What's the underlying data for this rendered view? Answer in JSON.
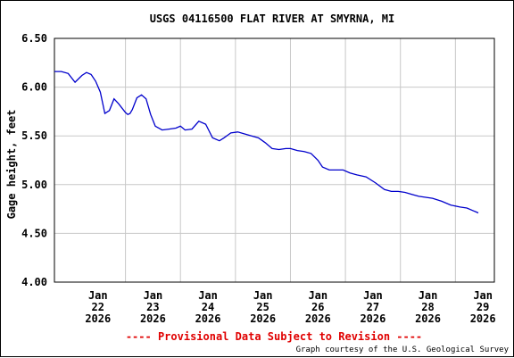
{
  "chart_data": {
    "type": "line",
    "title": "USGS 04116500 FLAT RIVER AT SMYRNA, MI",
    "ylabel": "Gage height, feet",
    "xlabel": "",
    "ylim": [
      4.0,
      6.5
    ],
    "yticks": [
      "4.00",
      "4.50",
      "5.00",
      "5.50",
      "6.00",
      "6.50"
    ],
    "yticks_values": [
      4.0,
      4.5,
      5.0,
      5.5,
      6.0,
      6.5
    ],
    "xlim": [
      "2026-01-21T17:00",
      "2026-01-29T17:00"
    ],
    "xticks": [
      {
        "at": "2026-01-22T12:00",
        "lines": [
          "Jan",
          "22",
          "2026"
        ]
      },
      {
        "at": "2026-01-23T12:00",
        "lines": [
          "Jan",
          "23",
          "2026"
        ]
      },
      {
        "at": "2026-01-24T12:00",
        "lines": [
          "Jan",
          "24",
          "2026"
        ]
      },
      {
        "at": "2026-01-25T12:00",
        "lines": [
          "Jan",
          "25",
          "2026"
        ]
      },
      {
        "at": "2026-01-26T12:00",
        "lines": [
          "Jan",
          "26",
          "2026"
        ]
      },
      {
        "at": "2026-01-27T12:00",
        "lines": [
          "Jan",
          "27",
          "2026"
        ]
      },
      {
        "at": "2026-01-28T12:00",
        "lines": [
          "Jan",
          "28",
          "2026"
        ]
      },
      {
        "at": "2026-01-29T12:00",
        "lines": [
          "Jan",
          "29",
          "2026"
        ]
      }
    ],
    "grid": true,
    "line_color": "#0000cc",
    "series": [
      {
        "x": [
          "2026-01-21T17:00",
          "2026-01-21T20:00",
          "2026-01-21T23:00",
          "2026-01-22T02:00",
          "2026-01-22T05:00",
          "2026-01-22T07:00",
          "2026-01-22T09:00",
          "2026-01-22T11:00",
          "2026-01-22T13:00",
          "2026-01-22T15:00",
          "2026-01-22T17:00",
          "2026-01-22T19:00",
          "2026-01-22T21:00",
          "2026-01-23T00:00",
          "2026-01-23T01:00",
          "2026-01-23T02:00",
          "2026-01-23T03:00",
          "2026-01-23T05:00",
          "2026-01-23T07:00",
          "2026-01-23T09:00",
          "2026-01-23T11:00",
          "2026-01-23T13:00",
          "2026-01-23T16:00",
          "2026-01-23T19:00",
          "2026-01-23T22:00",
          "2026-01-24T00:00",
          "2026-01-24T02:00",
          "2026-01-24T05:00",
          "2026-01-24T08:00",
          "2026-01-24T11:00",
          "2026-01-24T14:00",
          "2026-01-24T17:00",
          "2026-01-24T19:00",
          "2026-01-24T22:00",
          "2026-01-25T01:00",
          "2026-01-25T04:00",
          "2026-01-25T07:00",
          "2026-01-25T10:00",
          "2026-01-25T13:00",
          "2026-01-25T16:00",
          "2026-01-25T19:00",
          "2026-01-25T22:00",
          "2026-01-26T00:00",
          "2026-01-26T03:00",
          "2026-01-26T06:00",
          "2026-01-26T09:00",
          "2026-01-26T12:00",
          "2026-01-26T14:00",
          "2026-01-26T17:00",
          "2026-01-26T20:00",
          "2026-01-26T23:00",
          "2026-01-27T02:00",
          "2026-01-27T05:00",
          "2026-01-27T09:00",
          "2026-01-27T13:00",
          "2026-01-27T17:00",
          "2026-01-27T20:00",
          "2026-01-27T23:00",
          "2026-01-28T02:00",
          "2026-01-28T05:00",
          "2026-01-28T08:00",
          "2026-01-28T11:00",
          "2026-01-28T14:00",
          "2026-01-28T18:00",
          "2026-01-28T22:00",
          "2026-01-29T02:00",
          "2026-01-29T05:00",
          "2026-01-29T08:00",
          "2026-01-29T09:00",
          "2026-01-29T10:00"
        ],
        "values": [
          6.16,
          6.16,
          6.14,
          6.05,
          6.12,
          6.15,
          6.13,
          6.06,
          5.95,
          5.73,
          5.76,
          5.88,
          5.83,
          5.74,
          5.72,
          5.73,
          5.77,
          5.89,
          5.92,
          5.88,
          5.72,
          5.6,
          5.56,
          5.57,
          5.58,
          5.6,
          5.56,
          5.57,
          5.65,
          5.62,
          5.48,
          5.45,
          5.48,
          5.53,
          5.54,
          5.52,
          5.5,
          5.48,
          5.43,
          5.37,
          5.36,
          5.37,
          5.37,
          5.35,
          5.34,
          5.32,
          5.25,
          5.18,
          5.15,
          5.15,
          5.15,
          5.12,
          5.1,
          5.08,
          5.02,
          4.95,
          4.93,
          4.93,
          4.92,
          4.9,
          4.88,
          4.87,
          4.86,
          4.83,
          4.79,
          4.77,
          4.76,
          4.73,
          4.72,
          4.71
        ]
      }
    ]
  },
  "footer": {
    "provisional": "---- Provisional Data Subject to Revision ----",
    "courtesy": "Graph courtesy of the U.S. Geological Survey"
  }
}
